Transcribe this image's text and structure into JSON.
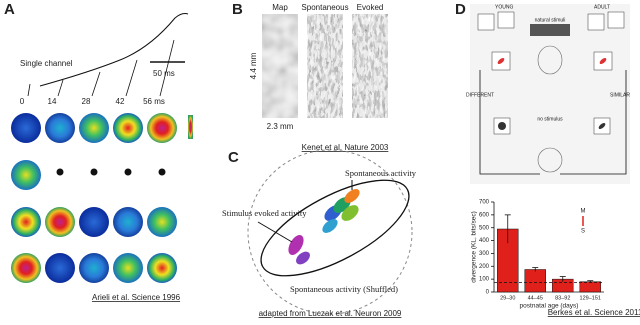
{
  "panels": {
    "A": {
      "label": "A",
      "channel": "Single channel",
      "scale": "50 ms",
      "times": [
        "0",
        "14",
        "28",
        "42",
        "56 ms"
      ],
      "citation": "Arieli  et al. Science 1996"
    },
    "B": {
      "label": "B",
      "columns": [
        "Map",
        "Spontaneous",
        "Evoked"
      ],
      "height": "4.4 mm",
      "width": "2.3 mm",
      "citation": "Kenet et al. Nature 2003"
    },
    "C": {
      "label": "C",
      "spontaneous": "Spontaneous activity",
      "evoked": "Stimulus evoked activity",
      "shuffled": "Spontaneous activity (Shuffled)",
      "citation": "adapted from Luczak et al. Neuron 2009"
    },
    "D": {
      "label": "D",
      "young": "YOUNG",
      "adult": "ADULT",
      "stimuli": "natural stimuli",
      "different": "DIFFERENT",
      "similar": "SIMILAR",
      "no_stimulus": "no stimulus",
      "citation": "Berkes et al. Science 2011"
    }
  },
  "chart_data": {
    "type": "bar",
    "categories": [
      "29–30",
      "44–45",
      "83–92",
      "129–151"
    ],
    "values": [
      490,
      175,
      100,
      80
    ],
    "errors": [
      110,
      15,
      20,
      8
    ],
    "color": "#e0201b",
    "ylim": [
      0,
      700
    ],
    "yticks": [
      0,
      100,
      200,
      300,
      400,
      500,
      600,
      700
    ],
    "baseline": 75,
    "xlabel": "postnatal age (days)",
    "ylabel": "divergence (KL, bits/sec)",
    "legend": [
      "M",
      "S"
    ]
  }
}
